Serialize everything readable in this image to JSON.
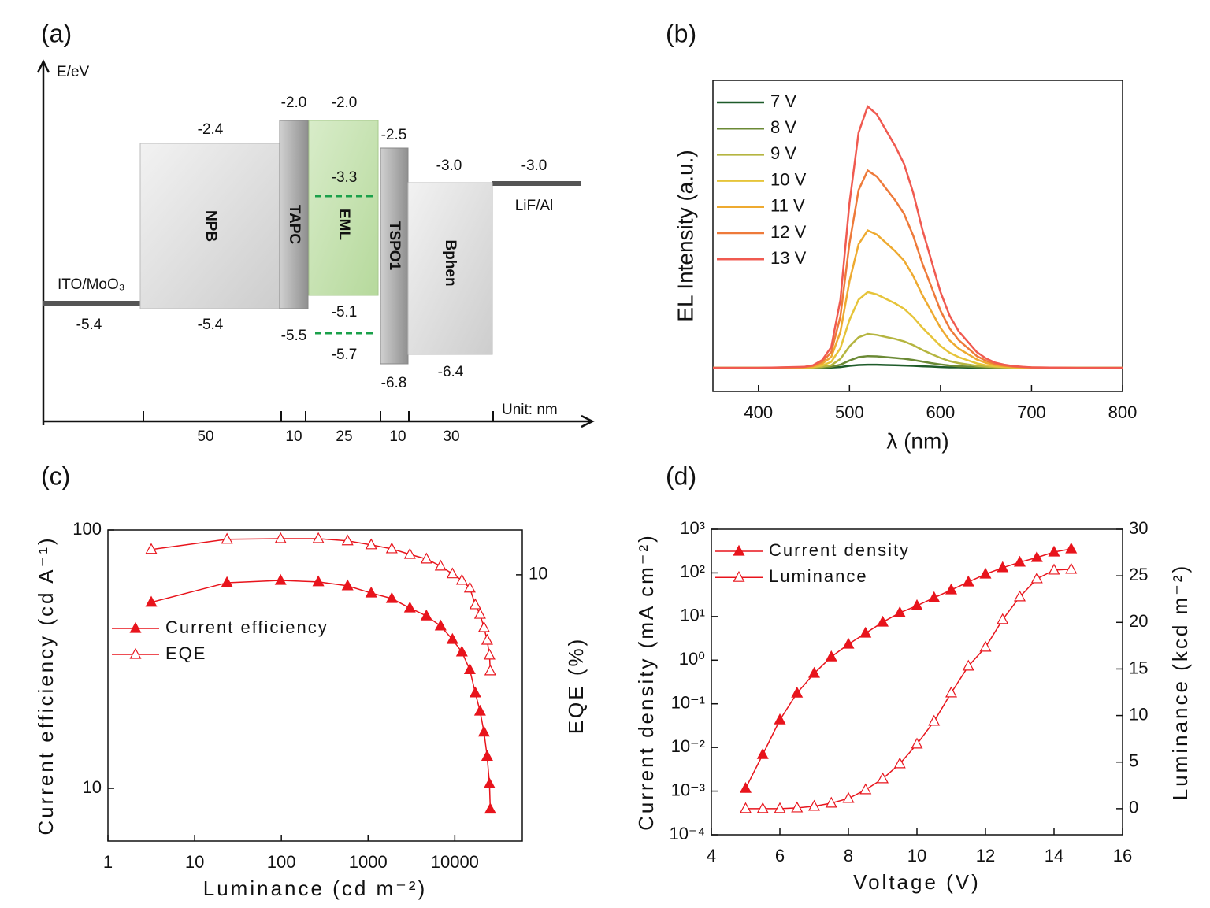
{
  "diagram": {
    "panel_label": "(a)",
    "axis_label": "E/eV",
    "unit_label": "Unit: nm",
    "anode": {
      "label": "ITO/MoO₃",
      "level": "-5.4"
    },
    "cathode": {
      "label": "LiF/Al",
      "level": "-3.0"
    },
    "layers": [
      {
        "label": "NPB",
        "lumo": "-2.4",
        "homo": "-5.4",
        "thickness": 50
      },
      {
        "label": "TAPC",
        "lumo": "-2.0",
        "homo": "-5.5",
        "thickness": 10
      },
      {
        "label": "EML",
        "lumo": "-2.0",
        "homo": "-5.1",
        "dopant_lumo": "-3.3",
        "dopant_homo": "-5.7",
        "thickness": 25
      },
      {
        "label": "TSPO1",
        "lumo": "-2.5",
        "homo": "-6.8",
        "thickness": 10
      },
      {
        "label": "Bphen",
        "lumo": "-3.0",
        "homo": "-6.4",
        "thickness": 30
      }
    ]
  },
  "chart_data": [
    {
      "type": "line",
      "panel_label": "(b)",
      "xlabel": "λ (nm)",
      "ylabel": "EL Intensity (a.u.)",
      "legend": "upper left",
      "xlim": [
        350,
        800
      ],
      "xticks": [
        400,
        500,
        600,
        700,
        800
      ],
      "ylim": [
        -0.09,
        1.1
      ],
      "x": [
        350,
        400,
        450,
        460,
        470,
        480,
        490,
        500,
        510,
        520,
        530,
        540,
        550,
        560,
        570,
        580,
        590,
        600,
        610,
        620,
        630,
        640,
        650,
        660,
        670,
        680,
        690,
        700,
        750,
        800
      ],
      "series": [
        {
          "name": "7 V",
          "color": "#1e5b2a",
          "values": [
            0,
            0,
            0,
            0,
            0,
            0.001,
            0.003,
            0.008,
            0.011,
            0.012,
            0.012,
            0.011,
            0.01,
            0.009,
            0.008,
            0.006,
            0.005,
            0.003,
            0.002,
            0.002,
            0.001,
            0.001,
            0,
            0,
            0,
            0,
            0,
            0,
            0,
            0
          ]
        },
        {
          "name": "8 V",
          "color": "#6b8a35",
          "values": [
            0,
            0,
            0,
            0,
            0.001,
            0.004,
            0.012,
            0.028,
            0.041,
            0.045,
            0.044,
            0.041,
            0.038,
            0.035,
            0.03,
            0.024,
            0.018,
            0.013,
            0.009,
            0.006,
            0.005,
            0.003,
            0.002,
            0.001,
            0.001,
            0,
            0,
            0,
            0,
            0
          ]
        },
        {
          "name": "9 V",
          "color": "#b5b540",
          "values": [
            0,
            0,
            0.001,
            0.001,
            0.004,
            0.01,
            0.034,
            0.082,
            0.117,
            0.13,
            0.126,
            0.118,
            0.111,
            0.101,
            0.087,
            0.069,
            0.053,
            0.038,
            0.026,
            0.018,
            0.013,
            0.008,
            0.005,
            0.003,
            0.002,
            0.001,
            0.001,
            0,
            0,
            0
          ]
        },
        {
          "name": "10 V",
          "color": "#e6c43a",
          "values": [
            0,
            0,
            0.001,
            0.003,
            0.009,
            0.023,
            0.075,
            0.183,
            0.261,
            0.29,
            0.281,
            0.264,
            0.247,
            0.226,
            0.194,
            0.154,
            0.119,
            0.084,
            0.058,
            0.041,
            0.029,
            0.017,
            0.01,
            0.006,
            0.003,
            0.002,
            0.001,
            0.001,
            0,
            0
          ]
        },
        {
          "name": "11 V",
          "color": "#eeaa30",
          "values": [
            0,
            0,
            0.002,
            0.005,
            0.016,
            0.042,
            0.137,
            0.331,
            0.473,
            0.526,
            0.51,
            0.479,
            0.447,
            0.41,
            0.352,
            0.279,
            0.216,
            0.153,
            0.105,
            0.074,
            0.053,
            0.032,
            0.019,
            0.011,
            0.006,
            0.004,
            0.002,
            0.001,
            0,
            0
          ]
        },
        {
          "name": "12 V",
          "color": "#ee7a3a",
          "values": [
            0,
            0,
            0.003,
            0.008,
            0.023,
            0.06,
            0.196,
            0.476,
            0.68,
            0.755,
            0.732,
            0.687,
            0.642,
            0.589,
            0.506,
            0.4,
            0.31,
            0.219,
            0.151,
            0.106,
            0.076,
            0.045,
            0.027,
            0.015,
            0.009,
            0.005,
            0.003,
            0.002,
            0,
            0
          ]
        },
        {
          "name": "13 V",
          "color": "#f05a50",
          "values": [
            0,
            0,
            0.004,
            0.01,
            0.03,
            0.08,
            0.26,
            0.63,
            0.9,
            1.0,
            0.97,
            0.91,
            0.85,
            0.78,
            0.67,
            0.53,
            0.41,
            0.29,
            0.2,
            0.14,
            0.1,
            0.06,
            0.036,
            0.02,
            0.012,
            0.007,
            0.004,
            0.002,
            0,
            0
          ]
        }
      ]
    },
    {
      "type": "line",
      "panel_label": "(c)",
      "xlabel": "Luminance (cd m⁻²)",
      "ylabel": "Current efficiency (cd A⁻¹)",
      "y2label": "EQE (%)",
      "legend": "center left",
      "xscale": "log",
      "yscale": "log",
      "xlim": [
        1,
        60000
      ],
      "xticks": [
        1,
        10,
        100,
        1000,
        10000
      ],
      "ylim": [
        6.25,
        100
      ],
      "yticks": [
        10,
        100
      ],
      "y2lim": [
        1.38,
        11.45
      ],
      "y2ticks": [
        10
      ],
      "x": [
        3.16,
        23.6,
        98,
        267,
        580,
        1087,
        1875,
        3033,
        4707,
        6860,
        9390,
        12070,
        14890,
        17230,
        19540,
        21700,
        23600,
        25120,
        25650
      ],
      "series": [
        {
          "name": "Current efficiency",
          "color": "#e8141c",
          "marker": "triangle",
          "filled": true,
          "values": [
            52.5,
            62.5,
            63.8,
            63,
            60.8,
            57,
            54.3,
            49.9,
            46.5,
            42.5,
            37.7,
            33.7,
            28.8,
            23.4,
            19.9,
            16.5,
            13.3,
            10.4,
            8.3
          ]
        },
        {
          "name": "EQE",
          "color": "#e8141c",
          "marker": "triangle",
          "filled": false,
          "axis": "y2",
          "values": [
            10.82,
            11.15,
            11.17,
            11.17,
            11.1,
            10.97,
            10.84,
            10.66,
            10.51,
            10.28,
            10.03,
            9.82,
            9.57,
            9.03,
            8.72,
            8.29,
            7.88,
            7.4,
            6.89
          ]
        }
      ]
    },
    {
      "type": "line",
      "panel_label": "(d)",
      "xlabel": "Voltage (V)",
      "ylabel": "Current density (mA cm⁻²)",
      "y2label": "Luminance (kcd m⁻²)",
      "legend": "upper left",
      "yscale": "log",
      "xlim": [
        4,
        16
      ],
      "xticks": [
        4,
        6,
        8,
        10,
        12,
        14,
        16
      ],
      "ylim": [
        0.0001,
        1000
      ],
      "yticks": [
        {
          "value": 0.0001,
          "label": "10⁻⁴"
        },
        {
          "value": 0.001,
          "label": "10⁻³"
        },
        {
          "value": 0.01,
          "label": "10⁻²"
        },
        {
          "value": 0.1,
          "label": "10⁻¹"
        },
        {
          "value": 1,
          "label": "10⁰"
        },
        {
          "value": 10,
          "label": "10¹"
        },
        {
          "value": 100,
          "label": "10²"
        },
        {
          "value": 1000,
          "label": "10³"
        }
      ],
      "y2lim": [
        -2.8,
        30
      ],
      "y2ticks": [
        0,
        5,
        10,
        15,
        20,
        25,
        30
      ],
      "x": [
        5,
        5.5,
        6,
        6.5,
        7,
        7.5,
        8,
        8.5,
        9,
        9.5,
        10,
        10.5,
        11,
        11.5,
        12,
        12.5,
        13,
        13.5,
        14,
        14.5
      ],
      "series": [
        {
          "name": "Current density",
          "color": "#e8141c",
          "marker": "triangle",
          "filled": true,
          "values": [
            0.00115,
            0.00689,
            0.0428,
            0.176,
            0.498,
            1.19,
            2.32,
            4.14,
            7.41,
            12.2,
            17.7,
            26.9,
            40.7,
            61.8,
            93.5,
            131,
            175,
            224,
            300,
            354
          ]
        },
        {
          "name": "Luminance",
          "color": "#e8141c",
          "marker": "triangle",
          "filled": false,
          "axis": "y2",
          "values": [
            0,
            0,
            0,
            0.08,
            0.25,
            0.59,
            1.1,
            2.03,
            3.21,
            4.82,
            6.93,
            9.38,
            12.43,
            15.3,
            17.33,
            20.29,
            22.74,
            24.68,
            25.61,
            25.7
          ]
        }
      ]
    }
  ]
}
